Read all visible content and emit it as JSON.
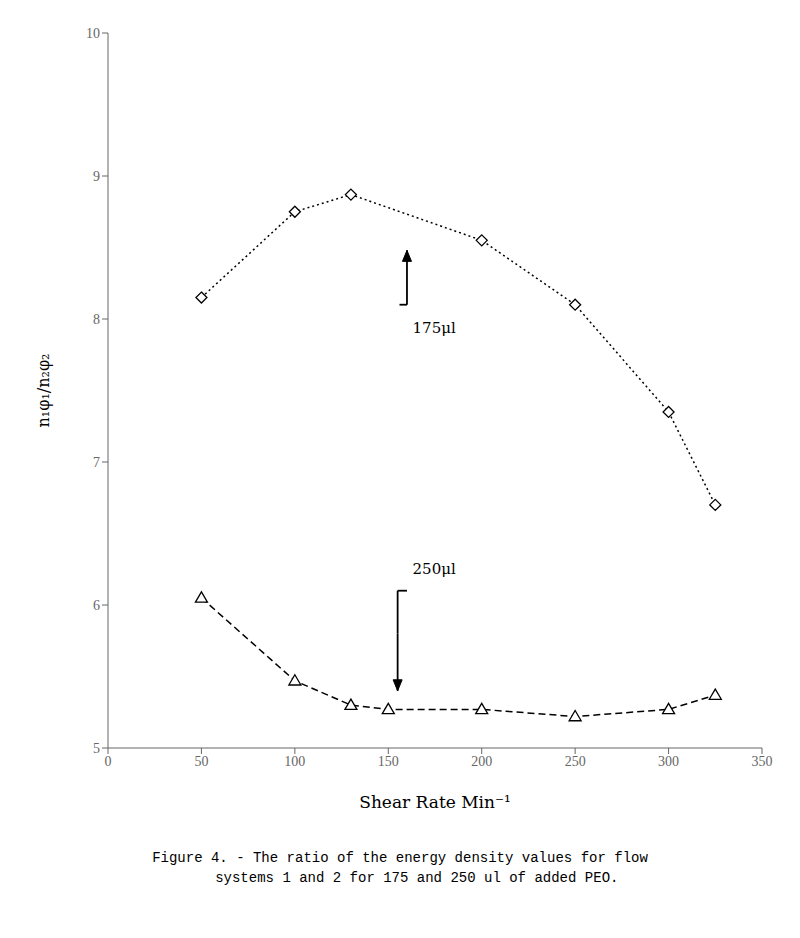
{
  "chart_data": {
    "type": "line",
    "xlabel": "Shear Rate    Min⁻¹",
    "ylabel": "n₁φ₁/n₂φ₂",
    "series": [
      {
        "x": [
          50,
          100,
          130,
          200,
          250,
          300,
          325
        ],
        "values": [
          8.15,
          8.75,
          8.87,
          8.55,
          8.1,
          7.35,
          6.7
        ],
        "color": "#000000",
        "marker": "diamond",
        "line_style": "dotted"
      },
      {
        "x": [
          50,
          100,
          130,
          150,
          200,
          250,
          300,
          325
        ],
        "values": [
          6.05,
          5.47,
          5.3,
          5.27,
          5.27,
          5.22,
          5.27,
          5.37
        ],
        "color": "#000000",
        "marker": "triangle",
        "line_style": "dashed"
      }
    ],
    "xlim": [
      0,
      350
    ],
    "ylim": [
      5,
      10
    ],
    "xticks": [
      0,
      50,
      100,
      150,
      200,
      250,
      300,
      350
    ],
    "yticks": [
      5,
      6,
      7,
      8,
      9,
      10
    ],
    "grid": false,
    "annotations": [
      {
        "text": "175μl",
        "x": 163,
        "y": 7.98,
        "path": [
          [
            156,
            8.1
          ],
          [
            160,
            8.1
          ],
          [
            160,
            8.48
          ]
        ]
      },
      {
        "text": "250μl",
        "x": 163,
        "y": 6.22,
        "path": [
          [
            160,
            6.1
          ],
          [
            155,
            6.1
          ],
          [
            155,
            5.8
          ],
          [
            155,
            5.4
          ]
        ]
      }
    ],
    "caption": [
      "Figure 4. - The ratio of the energy density values for flow",
      "    systems 1 and 2 for 175 and 250 ul of added PEO."
    ]
  }
}
